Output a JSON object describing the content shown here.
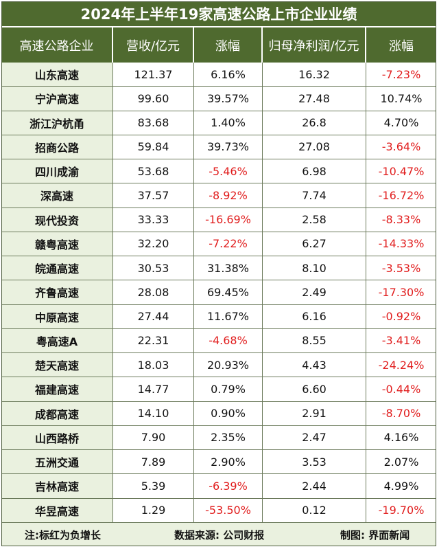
{
  "title": "2024年上半年19家高速公路上市企业业绩",
  "headers": [
    "高速公路企业",
    "营收/亿元",
    "涨幅",
    "归母净利润/亿元",
    "涨幅"
  ],
  "rows": [
    {
      "name": "山东高速",
      "revenue": "121.37",
      "rev_growth": "6.16%",
      "profit": "16.32",
      "profit_growth": "-7.23%"
    },
    {
      "name": "宁沪高速",
      "revenue": "99.60",
      "rev_growth": "39.57%",
      "profit": "27.48",
      "profit_growth": "10.74%"
    },
    {
      "name": "浙江沪杭甬",
      "revenue": "83.68",
      "rev_growth": "1.40%",
      "profit": "26.8",
      "profit_growth": "4.70%"
    },
    {
      "name": "招商公路",
      "revenue": "59.84",
      "rev_growth": "39.73%",
      "profit": "27.08",
      "profit_growth": "-3.64%"
    },
    {
      "name": "四川成渝",
      "revenue": "53.68",
      "rev_growth": "-5.46%",
      "profit": "6.98",
      "profit_growth": "-10.47%"
    },
    {
      "name": "深高速",
      "revenue": "37.57",
      "rev_growth": "-8.92%",
      "profit": "7.74",
      "profit_growth": "-16.72%"
    },
    {
      "name": "现代投资",
      "revenue": "33.33",
      "rev_growth": "-16.69%",
      "profit": "2.58",
      "profit_growth": "-8.33%"
    },
    {
      "name": "赣粤高速",
      "revenue": "32.20",
      "rev_growth": "-7.22%",
      "profit": "6.27",
      "profit_growth": "-14.33%"
    },
    {
      "name": "皖通高速",
      "revenue": "30.53",
      "rev_growth": "31.38%",
      "profit": "8.10",
      "profit_growth": "-3.53%"
    },
    {
      "name": "齐鲁高速",
      "revenue": "28.08",
      "rev_growth": "69.45%",
      "profit": "2.49",
      "profit_growth": "-17.30%"
    },
    {
      "name": "中原高速",
      "revenue": "27.44",
      "rev_growth": "11.67%",
      "profit": "6.16",
      "profit_growth": "-0.92%"
    },
    {
      "name": "粤高速A",
      "revenue": "22.31",
      "rev_growth": "-4.68%",
      "profit": "8.55",
      "profit_growth": "-3.41%"
    },
    {
      "name": "楚天高速",
      "revenue": "18.03",
      "rev_growth": "20.93%",
      "profit": "4.43",
      "profit_growth": "-24.24%"
    },
    {
      "name": "福建高速",
      "revenue": "14.77",
      "rev_growth": "0.79%",
      "profit": "6.60",
      "profit_growth": "-0.44%"
    },
    {
      "name": "成都高速",
      "revenue": "14.10",
      "rev_growth": "0.90%",
      "profit": "2.91",
      "profit_growth": "-8.70%"
    },
    {
      "name": "山西路桥",
      "revenue": "7.90",
      "rev_growth": "2.35%",
      "profit": "2.47",
      "profit_growth": "4.16%"
    },
    {
      "name": "五洲交通",
      "revenue": "7.89",
      "rev_growth": "2.90%",
      "profit": "3.53",
      "profit_growth": "2.07%"
    },
    {
      "name": "吉林高速",
      "revenue": "5.39",
      "rev_growth": "-6.39%",
      "profit": "2.44",
      "profit_growth": "4.99%"
    },
    {
      "name": "华昱高速",
      "revenue": "1.29",
      "rev_growth": "-53.50%",
      "profit": "0.12",
      "profit_growth": "-19.70%"
    }
  ],
  "footer": {
    "note": "注:标红为负增长",
    "source": "数据来源: 公司财报",
    "credit": "制图: 界面新闻"
  },
  "colors": {
    "header_bg": "#4f6a2f",
    "name_bg": "#eaf1df",
    "negative": "#e11d1d"
  }
}
